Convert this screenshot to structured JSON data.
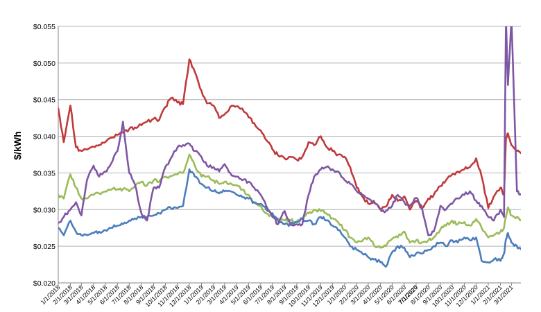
{
  "chart_data": {
    "type": "line",
    "title": "",
    "xlabel": "",
    "ylabel": "$/kWh",
    "ylim": [
      0.02,
      0.055
    ],
    "ytick_values": [
      0.02,
      0.025,
      0.03,
      0.035,
      0.04,
      0.045,
      0.05,
      0.055
    ],
    "ytick_labels": [
      "$0.020",
      "$0.025",
      "$0.030",
      "$0.035",
      "$0.040",
      "$0.045",
      "$0.050",
      "$0.055"
    ],
    "grid": true,
    "legend": "none",
    "xlim": [
      "1/1/2018",
      "3/25/2021"
    ],
    "x_tick_labels": [
      "1/1/2018",
      "2/1/2018",
      "3/1/2018",
      "4/1/2018",
      "5/1/2018",
      "6/1/2018",
      "7/1/2018",
      "8/1/2018",
      "9/1/2018",
      "10/1/2018",
      "11/1/2018",
      "12/1/2018",
      "1/1/2019",
      "2/1/2019",
      "3/1/2019",
      "4/1/2019",
      "5/1/2019",
      "6/1/2019",
      "7/1/2019",
      "8/1/2019",
      "9/1/2019",
      "10/1/2019",
      "11/1/2019",
      "12/1/2019",
      "1/1/2020",
      "2/1/2020",
      "3/1/2020",
      "4/1/2020",
      "5/1/2020",
      "6/1/2020",
      "7/1/2020",
      "8/1/2020",
      "9/1/2020",
      "10/1/2020",
      "11/1/2020",
      "12/1/2020",
      "1/1/2021",
      "2/1/2021",
      "3/1/2021"
    ],
    "x": [
      "1/1/2018",
      "1/15/2018",
      "2/1/2018",
      "2/15/2018",
      "3/1/2018",
      "3/15/2018",
      "4/1/2018",
      "4/15/2018",
      "5/1/2018",
      "5/15/2018",
      "6/1/2018",
      "6/15/2018",
      "7/1/2018",
      "7/15/2018",
      "8/1/2018",
      "8/15/2018",
      "9/1/2018",
      "9/15/2018",
      "10/1/2018",
      "10/15/2018",
      "11/1/2018",
      "11/15/2018",
      "12/1/2018",
      "12/15/2018",
      "1/1/2019",
      "1/15/2019",
      "2/1/2019",
      "2/15/2019",
      "3/1/2019",
      "3/15/2019",
      "4/1/2019",
      "4/15/2019",
      "5/1/2019",
      "5/15/2019",
      "6/1/2019",
      "6/15/2019",
      "7/1/2019",
      "7/15/2019",
      "8/1/2019",
      "8/15/2019",
      "9/1/2019",
      "9/15/2019",
      "10/1/2019",
      "10/15/2019",
      "11/1/2019",
      "11/15/2019",
      "12/1/2019",
      "12/15/2019",
      "1/1/2020",
      "1/15/2020",
      "2/1/2020",
      "2/15/2020",
      "3/1/2020",
      "3/15/2020",
      "4/1/2020",
      "4/15/2020",
      "5/1/2020",
      "5/15/2020",
      "6/1/2020",
      "6/15/2020",
      "7/1/2020",
      "7/15/2020",
      "8/1/2020",
      "8/15/2020",
      "9/1/2020",
      "9/15/2020",
      "10/1/2020",
      "10/15/2020",
      "11/1/2020",
      "11/15/2020",
      "12/1/2020",
      "12/15/2020",
      "1/1/2021",
      "1/15/2021",
      "2/1/2021",
      "2/10/2021",
      "2/15/2021",
      "2/20/2021",
      "3/1/2021",
      "3/15/2021",
      "3/25/2021"
    ],
    "series": [
      {
        "color": "#c0393b",
        "values": [
          0.0438,
          0.0392,
          0.0442,
          0.0385,
          0.038,
          0.0382,
          0.0386,
          0.0388,
          0.0392,
          0.0398,
          0.0402,
          0.0405,
          0.041,
          0.0412,
          0.0415,
          0.042,
          0.0424,
          0.0422,
          0.044,
          0.0452,
          0.0446,
          0.0444,
          0.0505,
          0.0488,
          0.0462,
          0.0445,
          0.0442,
          0.0425,
          0.043,
          0.044,
          0.0441,
          0.0438,
          0.0426,
          0.0418,
          0.0408,
          0.0395,
          0.0382,
          0.0374,
          0.037,
          0.0372,
          0.0368,
          0.0372,
          0.0392,
          0.0388,
          0.04,
          0.0386,
          0.038,
          0.0375,
          0.0372,
          0.0358,
          0.033,
          0.0318,
          0.0308,
          0.0312,
          0.03,
          0.0304,
          0.032,
          0.0312,
          0.0318,
          0.03,
          0.0312,
          0.0302,
          0.0315,
          0.032,
          0.0332,
          0.034,
          0.0348,
          0.0352,
          0.0355,
          0.0358,
          0.037,
          0.0345,
          0.0302,
          0.0318,
          0.033,
          0.032,
          0.0398,
          0.0404,
          0.0388,
          0.038,
          0.0377
        ]
      },
      {
        "color": "#9bbb59",
        "values": [
          0.032,
          0.0315,
          0.0348,
          0.033,
          0.0315,
          0.0315,
          0.032,
          0.0322,
          0.0325,
          0.0327,
          0.0328,
          0.0328,
          0.0325,
          0.0332,
          0.0338,
          0.0333,
          0.034,
          0.0338,
          0.0345,
          0.0346,
          0.0348,
          0.035,
          0.0375,
          0.036,
          0.0345,
          0.0345,
          0.034,
          0.0335,
          0.0338,
          0.0336,
          0.0333,
          0.0327,
          0.032,
          0.031,
          0.0305,
          0.0295,
          0.029,
          0.0288,
          0.0285,
          0.0285,
          0.0284,
          0.0288,
          0.0295,
          0.03,
          0.0298,
          0.0295,
          0.0288,
          0.0283,
          0.0272,
          0.0262,
          0.0255,
          0.0257,
          0.0262,
          0.0252,
          0.0248,
          0.025,
          0.026,
          0.0262,
          0.027,
          0.0255,
          0.0258,
          0.0255,
          0.0258,
          0.0262,
          0.0273,
          0.0278,
          0.0285,
          0.028,
          0.0283,
          0.0278,
          0.0287,
          0.0275,
          0.0262,
          0.0265,
          0.027,
          0.0275,
          0.029,
          0.0303,
          0.0292,
          0.029,
          0.0286
        ]
      },
      {
        "color": "#4a7ebb",
        "values": [
          0.0275,
          0.0265,
          0.0285,
          0.027,
          0.0265,
          0.0265,
          0.0268,
          0.027,
          0.0272,
          0.0275,
          0.0278,
          0.028,
          0.0285,
          0.0288,
          0.029,
          0.029,
          0.0292,
          0.0295,
          0.03,
          0.0302,
          0.0302,
          0.0305,
          0.0355,
          0.0345,
          0.0335,
          0.033,
          0.0325,
          0.0322,
          0.0325,
          0.0325,
          0.032,
          0.0317,
          0.0315,
          0.031,
          0.0308,
          0.03,
          0.0295,
          0.0285,
          0.028,
          0.028,
          0.0283,
          0.0287,
          0.0285,
          0.028,
          0.029,
          0.0285,
          0.0278,
          0.0272,
          0.0262,
          0.025,
          0.0245,
          0.024,
          0.0235,
          0.0232,
          0.0228,
          0.0222,
          0.0242,
          0.025,
          0.0248,
          0.0235,
          0.024,
          0.024,
          0.0245,
          0.025,
          0.0255,
          0.025,
          0.0258,
          0.0255,
          0.0262,
          0.0258,
          0.0262,
          0.023,
          0.0228,
          0.0232,
          0.023,
          0.024,
          0.026,
          0.0268,
          0.0255,
          0.025,
          0.0246
        ]
      },
      {
        "color": "#7e56a3",
        "values": [
          0.0282,
          0.029,
          0.03,
          0.031,
          0.0292,
          0.034,
          0.036,
          0.0345,
          0.0352,
          0.0362,
          0.038,
          0.042,
          0.035,
          0.0335,
          0.0295,
          0.0285,
          0.033,
          0.033,
          0.0358,
          0.037,
          0.0385,
          0.0388,
          0.039,
          0.038,
          0.0372,
          0.036,
          0.0358,
          0.0352,
          0.0362,
          0.035,
          0.0345,
          0.034,
          0.0338,
          0.033,
          0.032,
          0.0305,
          0.029,
          0.028,
          0.0298,
          0.028,
          0.028,
          0.028,
          0.032,
          0.0345,
          0.0355,
          0.0358,
          0.0355,
          0.0352,
          0.034,
          0.0335,
          0.0325,
          0.032,
          0.0315,
          0.031,
          0.03,
          0.0298,
          0.0305,
          0.032,
          0.031,
          0.0305,
          0.0316,
          0.0305,
          0.0265,
          0.027,
          0.0305,
          0.03,
          0.0308,
          0.0315,
          0.032,
          0.0325,
          0.0312,
          0.0305,
          0.029,
          0.0285,
          0.03,
          0.029,
          0.056,
          0.047,
          0.056,
          0.0325,
          0.0321
        ]
      }
    ]
  }
}
